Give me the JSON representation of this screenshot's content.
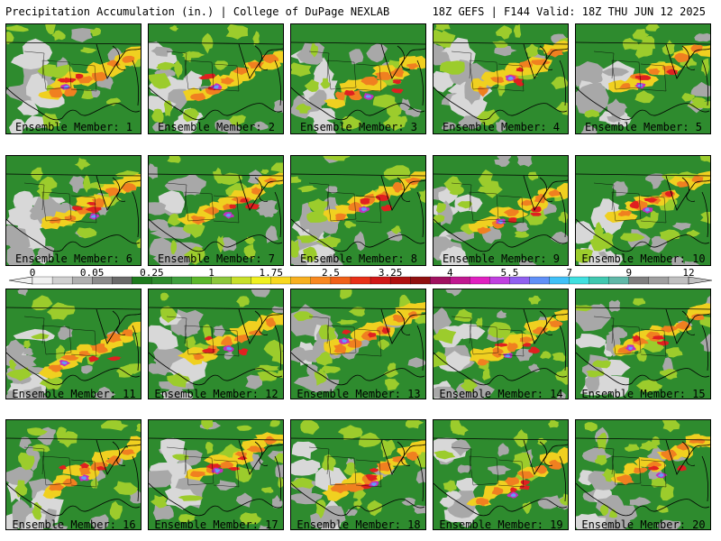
{
  "header": {
    "title": "Precipitation Accumulation (in.) | College of DuPage NEXLAB",
    "run_info": "18Z GEFS | F144 Valid: 18Z THU JUN 12 2025"
  },
  "panels": [
    {
      "member": "Ensemble Member: 1"
    },
    {
      "member": "Ensemble Member: 2"
    },
    {
      "member": "Ensemble Member: 3"
    },
    {
      "member": "Ensemble Member: 4"
    },
    {
      "member": "Ensemble Member: 5"
    },
    {
      "member": "Ensemble Member: 6"
    },
    {
      "member": "Ensemble Member: 7"
    },
    {
      "member": "Ensemble Member: 8"
    },
    {
      "member": "Ensemble Member: 9"
    },
    {
      "member": "Ensemble Member: 10"
    },
    {
      "member": "Ensemble Member: 11"
    },
    {
      "member": "Ensemble Member: 12"
    },
    {
      "member": "Ensemble Member: 13"
    },
    {
      "member": "Ensemble Member: 14"
    },
    {
      "member": "Ensemble Member: 15"
    },
    {
      "member": "Ensemble Member: 16"
    },
    {
      "member": "Ensemble Member: 17"
    },
    {
      "member": "Ensemble Member: 18"
    },
    {
      "member": "Ensemble Member: 19"
    },
    {
      "member": "Ensemble Member: 20"
    }
  ],
  "colorbar": {
    "labels": [
      "0",
      "0.05",
      "0.25",
      "1",
      "1.75",
      "2.5",
      "3.25",
      "4",
      "5.5",
      "7",
      "9",
      "12"
    ],
    "colors": [
      "#f0f0f0",
      "#d0d0d0",
      "#b0b0b0",
      "#8c8c8c",
      "#6a6a6a",
      "#1e7a1e",
      "#2e8b2e",
      "#3fa03f",
      "#5cb82c",
      "#8cc83c",
      "#c8e02a",
      "#f0f020",
      "#f8d820",
      "#f8b020",
      "#f88820",
      "#f06018",
      "#e83018",
      "#d01818",
      "#b01010",
      "#901010",
      "#a01060",
      "#c01890",
      "#e020c0",
      "#c040e0",
      "#9060f0",
      "#6090f8",
      "#40c0f8",
      "#40e0e0",
      "#40c8b0",
      "#60b8a8",
      "#808080",
      "#a0a0a0",
      "#c0c0c0"
    ],
    "map_colors": {
      "base": "#2e8b2e",
      "dry": "#d8d8d8",
      "light": "#a8a8a8",
      "moderate": "#9ccc2c",
      "heavy": "#f0d020",
      "very_heavy": "#f08020",
      "extreme": "#e02020",
      "max": "#c030c0",
      "record": "#60a0f8"
    }
  }
}
